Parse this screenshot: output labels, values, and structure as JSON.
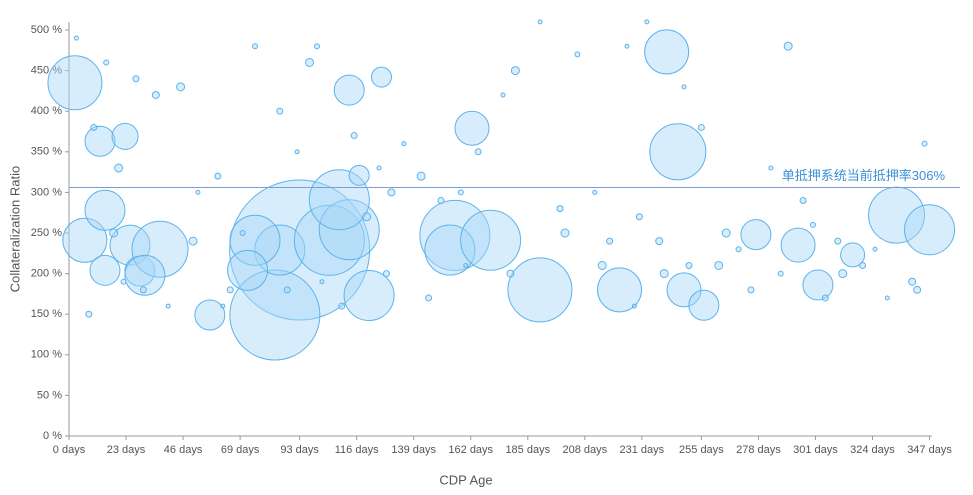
{
  "chart_data": {
    "type": "bubble",
    "x_label": "CDP Age",
    "y_label": "Collateralization Ratio",
    "xlim": [
      0,
      348
    ],
    "ylim": [
      0,
      500
    ],
    "xticks": [
      {
        "value": 0,
        "label": "0 days"
      },
      {
        "value": 23,
        "label": "23 days"
      },
      {
        "value": 46,
        "label": "46 days"
      },
      {
        "value": 69,
        "label": "69 days"
      },
      {
        "value": 93,
        "label": "93 days"
      },
      {
        "value": 116,
        "label": "116 days"
      },
      {
        "value": 139,
        "label": "139 days"
      },
      {
        "value": 162,
        "label": "162 days"
      },
      {
        "value": 185,
        "label": "185 days"
      },
      {
        "value": 208,
        "label": "208 days"
      },
      {
        "value": 231,
        "label": "231 days"
      },
      {
        "value": 255,
        "label": "255 days"
      },
      {
        "value": 278,
        "label": "278 days"
      },
      {
        "value": 301,
        "label": "301 days"
      },
      {
        "value": 324,
        "label": "324 days"
      },
      {
        "value": 347,
        "label": "347 days"
      }
    ],
    "yticks": [
      {
        "value": 0,
        "label": "0 %"
      },
      {
        "value": 50,
        "label": "50 %"
      },
      {
        "value": 100,
        "label": "100 %"
      },
      {
        "value": 150,
        "label": "150 %"
      },
      {
        "value": 200,
        "label": "200 %"
      },
      {
        "value": 250,
        "label": "250 %"
      },
      {
        "value": 300,
        "label": "300 %"
      },
      {
        "value": 350,
        "label": "350 %"
      },
      {
        "value": 400,
        "label": "400 %"
      },
      {
        "value": 450,
        "label": "450 %"
      },
      {
        "value": 500,
        "label": "500 %"
      }
    ],
    "color": "#a9d8f7",
    "stroke": "#5cb3ec",
    "reference_line": {
      "value": 306,
      "label": "单抵押系统当前抵押率306%",
      "color": "#7d9fcf"
    },
    "x": [
      2.4,
      6.4,
      12.5,
      22.6,
      14.5,
      24.6,
      28.6,
      36.7,
      30.6,
      14.5,
      56.8,
      93,
      83,
      85,
      75,
      105,
      113,
      109,
      121,
      113,
      126,
      117,
      155.6,
      153.6,
      170,
      162.5,
      189.9,
      222,
      241,
      245.5,
      248,
      256,
      277,
      294,
      302,
      316,
      333.7,
      347,
      72,
      3,
      10,
      15,
      20,
      27,
      35,
      45,
      52,
      60,
      62,
      75,
      85,
      92,
      97,
      100,
      115,
      125,
      130,
      135,
      142,
      150,
      158,
      165,
      175,
      180,
      190,
      198,
      205,
      212,
      215,
      225,
      230,
      233,
      238,
      240,
      248,
      255,
      262,
      270,
      275,
      283,
      290,
      296,
      300,
      305,
      312,
      320,
      330,
      340,
      345,
      30,
      40,
      50,
      65,
      70,
      110,
      120,
      145,
      160,
      178,
      200,
      218,
      228,
      250,
      265,
      287,
      310,
      325,
      342,
      8,
      18,
      22,
      88,
      102,
      128
    ],
    "values": [
      435,
      241,
      363,
      369,
      278,
      235,
      203,
      230,
      198,
      204,
      149,
      229,
      149,
      229,
      241,
      241,
      254,
      291,
      173,
      426,
      442,
      321,
      247,
      229,
      241,
      379,
      180,
      180,
      473,
      350,
      180,
      161,
      248,
      235,
      186,
      223,
      272,
      254,
      204,
      490,
      380,
      460,
      330,
      440,
      420,
      430,
      300,
      320,
      160,
      480,
      400,
      350,
      460,
      480,
      370,
      330,
      300,
      360,
      320,
      290,
      300,
      350,
      420,
      450,
      510,
      280,
      470,
      300,
      210,
      480,
      270,
      510,
      240,
      200,
      430,
      380,
      210,
      230,
      180,
      330,
      480,
      290,
      260,
      170,
      200,
      210,
      170,
      190,
      360,
      180,
      160,
      240,
      180,
      250,
      160,
      270,
      170,
      210,
      200,
      250,
      240,
      160,
      210,
      250,
      200,
      240,
      230,
      180,
      150,
      250,
      190,
      180,
      190,
      200
    ],
    "sizes": [
      27,
      22,
      15,
      13,
      20,
      20,
      15,
      28,
      20,
      15,
      15,
      70,
      45,
      25,
      25,
      35,
      30,
      30,
      25,
      15,
      10,
      10,
      35,
      25,
      30,
      17,
      32,
      22,
      22,
      28,
      17,
      15,
      15,
      17,
      15,
      12,
      28,
      25,
      20,
      2,
      3,
      2.5,
      4,
      3,
      3.5,
      4,
      2,
      3,
      2,
      2.5,
      3,
      2,
      4,
      2.5,
      3,
      2,
      3.5,
      2,
      4,
      3,
      2.5,
      3,
      2,
      4,
      2,
      3,
      2.5,
      2,
      4,
      2,
      3,
      2,
      3.5,
      4,
      2,
      3,
      4,
      2.5,
      3,
      2,
      4,
      3,
      2.5,
      3,
      4,
      3,
      2,
      3.5,
      2.5,
      3,
      2,
      4,
      3,
      2.5,
      3,
      4,
      3,
      2,
      3.5,
      4,
      3,
      2,
      3,
      4,
      2.5,
      3,
      2,
      3.5,
      3,
      4,
      2.5,
      3,
      2,
      3
    ]
  }
}
